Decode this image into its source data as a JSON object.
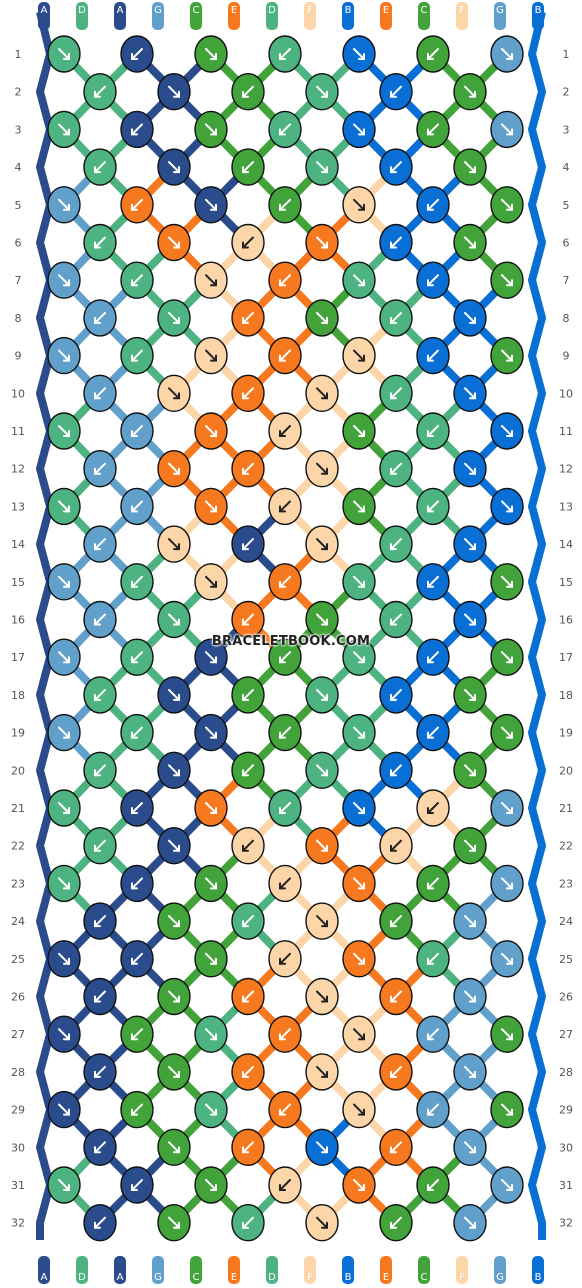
{
  "site": {
    "watermark": "BRACELETBOOK.COM"
  },
  "pattern": {
    "strand_labels_top": [
      "A",
      "D",
      "A",
      "G",
      "C",
      "E",
      "D",
      "F",
      "B",
      "E",
      "C",
      "F",
      "G",
      "B"
    ],
    "strand_labels_bottom": [
      "A",
      "D",
      "A",
      "G",
      "C",
      "E",
      "D",
      "F",
      "B",
      "E",
      "C",
      "F",
      "G",
      "B"
    ],
    "row_numbers": [
      "1",
      "2",
      "3",
      "4",
      "5",
      "6",
      "7",
      "8",
      "9",
      "10",
      "11",
      "12",
      "13",
      "14",
      "15",
      "16",
      "17",
      "18",
      "19",
      "20",
      "21",
      "22",
      "23",
      "24",
      "25",
      "26",
      "27",
      "28",
      "29",
      "30",
      "31",
      "32"
    ],
    "colors": {
      "A": "#2b4c8c",
      "B": "#0a6fd4",
      "C": "#41a33a",
      "D": "#4db380",
      "E": "#f7791f",
      "F": "#fcd6a8",
      "G": "#62a0cc"
    },
    "knots": [
      [
        "D",
        "A",
        "C",
        "D",
        "B",
        "C",
        "G"
      ],
      [
        "D",
        "A",
        "C",
        "D",
        "B",
        "C"
      ],
      [
        "D",
        "A",
        "C",
        "D",
        "B",
        "C",
        "G"
      ],
      [
        "D",
        "A",
        "C",
        "D",
        "B",
        "C"
      ],
      [
        "G",
        "E",
        "A",
        "C",
        "F",
        "B",
        "C"
      ],
      [
        "D",
        "E",
        "F",
        "E",
        "B",
        "C"
      ],
      [
        "G",
        "D",
        "F",
        "E",
        "D",
        "B",
        "C"
      ],
      [
        "G",
        "D",
        "E",
        "C",
        "D",
        "B"
      ],
      [
        "G",
        "D",
        "F",
        "E",
        "F",
        "B",
        "C"
      ],
      [
        "G",
        "F",
        "E",
        "F",
        "D",
        "B"
      ],
      [
        "D",
        "G",
        "E",
        "F",
        "C",
        "D",
        "B"
      ],
      [
        "G",
        "E",
        "E",
        "F",
        "D",
        "B"
      ],
      [
        "D",
        "G",
        "E",
        "F",
        "C",
        "D",
        "B"
      ],
      [
        "G",
        "F",
        "A",
        "F",
        "D",
        "B"
      ],
      [
        "G",
        "D",
        "F",
        "E",
        "D",
        "B",
        "C"
      ],
      [
        "G",
        "D",
        "E",
        "C",
        "D",
        "B"
      ],
      [
        "G",
        "D",
        "A",
        "C",
        "D",
        "B",
        "C"
      ],
      [
        "D",
        "A",
        "C",
        "D",
        "B",
        "C"
      ],
      [
        "G",
        "D",
        "A",
        "C",
        "D",
        "B",
        "C"
      ],
      [
        "D",
        "A",
        "C",
        "D",
        "B",
        "C"
      ],
      [
        "D",
        "A",
        "E",
        "D",
        "B",
        "F",
        "G"
      ],
      [
        "D",
        "A",
        "F",
        "E",
        "F",
        "C"
      ],
      [
        "D",
        "A",
        "C",
        "F",
        "E",
        "C",
        "G"
      ],
      [
        "A",
        "C",
        "D",
        "F",
        "C",
        "G"
      ],
      [
        "A",
        "A",
        "C",
        "F",
        "E",
        "D",
        "G"
      ],
      [
        "A",
        "C",
        "E",
        "F",
        "E",
        "G"
      ],
      [
        "A",
        "C",
        "D",
        "E",
        "F",
        "G",
        "C"
      ],
      [
        "A",
        "C",
        "E",
        "F",
        "E",
        "G"
      ],
      [
        "A",
        "C",
        "D",
        "E",
        "F",
        "G",
        "C"
      ],
      [
        "A",
        "C",
        "E",
        "B",
        "E",
        "G"
      ],
      [
        "D",
        "A",
        "C",
        "F",
        "E",
        "C",
        "G"
      ],
      [
        "A",
        "C",
        "D",
        "F",
        "C",
        "G"
      ]
    ]
  }
}
